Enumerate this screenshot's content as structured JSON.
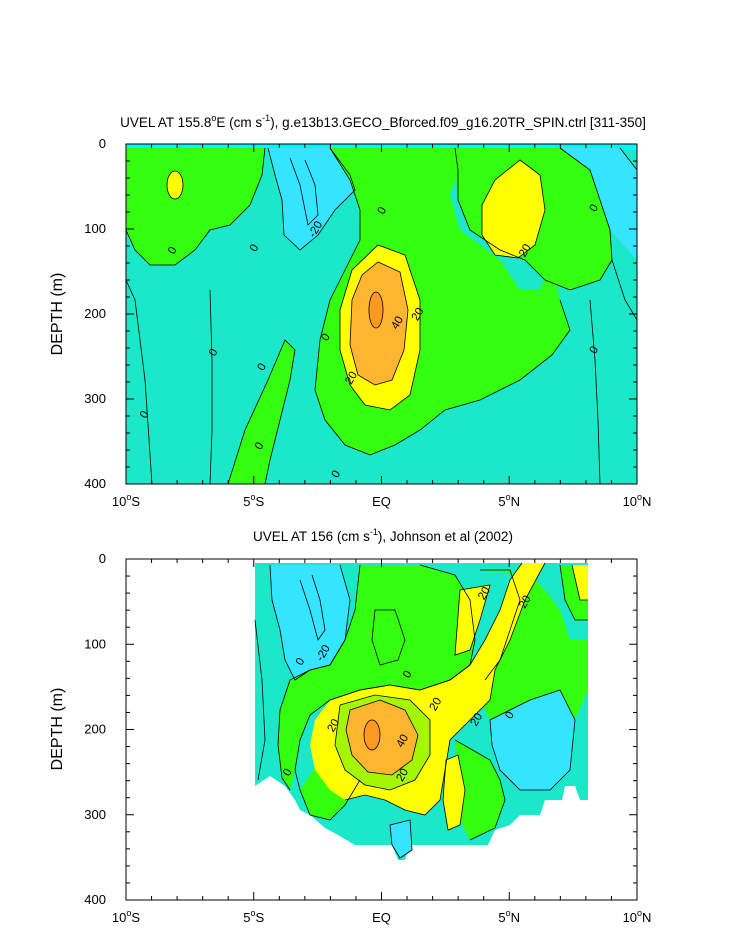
{
  "chart_data": [
    {
      "type": "contour",
      "title_main": "UVEL AT 155.8",
      "title_degree": "o",
      "title_rest": "E (cm s",
      "title_exp": "-1",
      "title_tail": "), g.e13b13.GECO_Bforced.f09_g16.20TR_SPIN.ctrl [311-350]",
      "ylabel": "DEPTH (m)",
      "xlabel": "",
      "ylim": [
        400,
        0
      ],
      "xlim": [
        -10,
        10
      ],
      "yticks": [
        "0",
        "100",
        "200",
        "300",
        "400"
      ],
      "xticks": [
        {
          "deg": "10",
          "sup": "o",
          "hem": "S"
        },
        {
          "deg": "5",
          "sup": "o",
          "hem": "S"
        },
        {
          "deg": "EQ",
          "sup": "",
          "hem": ""
        },
        {
          "deg": "5",
          "sup": "o",
          "hem": "N"
        },
        {
          "deg": "10",
          "sup": "o",
          "hem": "N"
        }
      ],
      "levels_cm_s": [
        -20,
        0,
        20,
        40
      ],
      "contour_labels": [
        {
          "text": "0",
          "lat": -8.2,
          "depth": 125
        },
        {
          "text": "0",
          "lat": -5.0,
          "depth": 122
        },
        {
          "text": "-20",
          "lat": -2.6,
          "depth": 100
        },
        {
          "text": "0",
          "lat": 0.0,
          "depth": 78
        },
        {
          "text": "0",
          "lat": 8.3,
          "depth": 75
        },
        {
          "text": "20",
          "lat": 5.6,
          "depth": 125
        },
        {
          "text": "40",
          "lat": 0.6,
          "depth": 210
        },
        {
          "text": "20",
          "lat": 1.4,
          "depth": 200
        },
        {
          "text": "20",
          "lat": -1.2,
          "depth": 275
        },
        {
          "text": "0",
          "lat": -6.6,
          "depth": 245
        },
        {
          "text": "0",
          "lat": -4.7,
          "depth": 262
        },
        {
          "text": "0",
          "lat": -2.2,
          "depth": 227
        },
        {
          "text": "0",
          "lat": 8.3,
          "depth": 242
        },
        {
          "text": "0",
          "lat": -9.3,
          "depth": 318
        },
        {
          "text": "0",
          "lat": -4.8,
          "depth": 355
        },
        {
          "text": "0",
          "lat": -1.8,
          "depth": 388
        }
      ]
    },
    {
      "type": "contour",
      "title_main": "UVEL AT 156 (cm s",
      "title_exp": "-1",
      "title_tail": "), Johnson et al (2002)",
      "ylabel": "DEPTH (m)",
      "xlabel": "",
      "ylim": [
        400,
        0
      ],
      "xlim": [
        -10,
        10
      ],
      "yticks": [
        "0",
        "100",
        "200",
        "300",
        "400"
      ],
      "xticks": [
        {
          "deg": "10",
          "sup": "o",
          "hem": "S"
        },
        {
          "deg": "5",
          "sup": "o",
          "hem": "S"
        },
        {
          "deg": "EQ",
          "sup": "",
          "hem": ""
        },
        {
          "deg": "5",
          "sup": "o",
          "hem": "N"
        },
        {
          "deg": "10",
          "sup": "o",
          "hem": "N"
        }
      ],
      "levels_cm_s": [
        -20,
        0,
        20,
        40
      ],
      "contour_labels": [
        {
          "text": "20",
          "lat": 4.0,
          "depth": 40
        },
        {
          "text": "20",
          "lat": 5.6,
          "depth": 50
        },
        {
          "text": "-20",
          "lat": -2.3,
          "depth": 110
        },
        {
          "text": "0",
          "lat": -3.2,
          "depth": 120
        },
        {
          "text": "0",
          "lat": 1.0,
          "depth": 135
        },
        {
          "text": "20",
          "lat": 2.1,
          "depth": 170
        },
        {
          "text": "20",
          "lat": 3.7,
          "depth": 188
        },
        {
          "text": "0",
          "lat": 5.0,
          "depth": 183
        },
        {
          "text": "20",
          "lat": -1.9,
          "depth": 195
        },
        {
          "text": "40",
          "lat": 0.8,
          "depth": 213
        },
        {
          "text": "20",
          "lat": 0.8,
          "depth": 253
        },
        {
          "text": "0",
          "lat": -3.7,
          "depth": 250
        }
      ]
    }
  ],
  "colors": {
    "cyan": "#00f7f2",
    "lightblue": "#35e5ff",
    "teal": "#1be7c9",
    "green": "#33ff0e",
    "lime": "#72ff00",
    "greenyellow": "#a5f700",
    "yellow": "#ffff00",
    "orange": "#ffb52f",
    "deeporange": "#ff9920"
  }
}
